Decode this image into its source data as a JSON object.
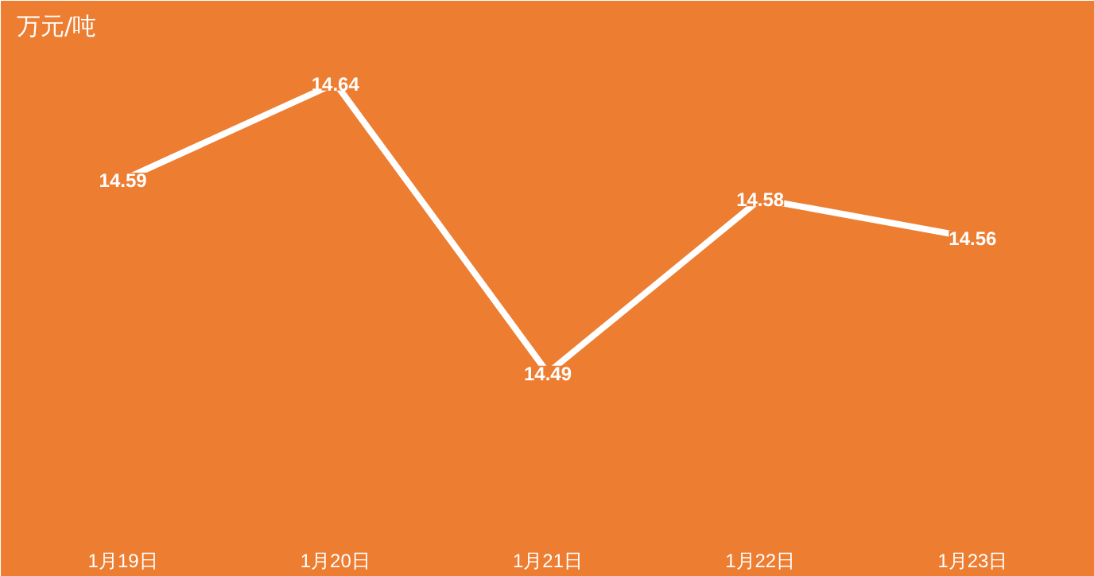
{
  "chart_data": {
    "type": "line",
    "title": "万元/吨",
    "categories": [
      "1月19日",
      "1月20日",
      "1月21日",
      "1月22日",
      "1月23日"
    ],
    "series": [
      {
        "color": "#ffffff",
        "values": [
          14.59,
          14.64,
          14.49,
          14.58,
          14.56
        ]
      }
    ],
    "data_labels": true,
    "line_style": "solid"
  }
}
